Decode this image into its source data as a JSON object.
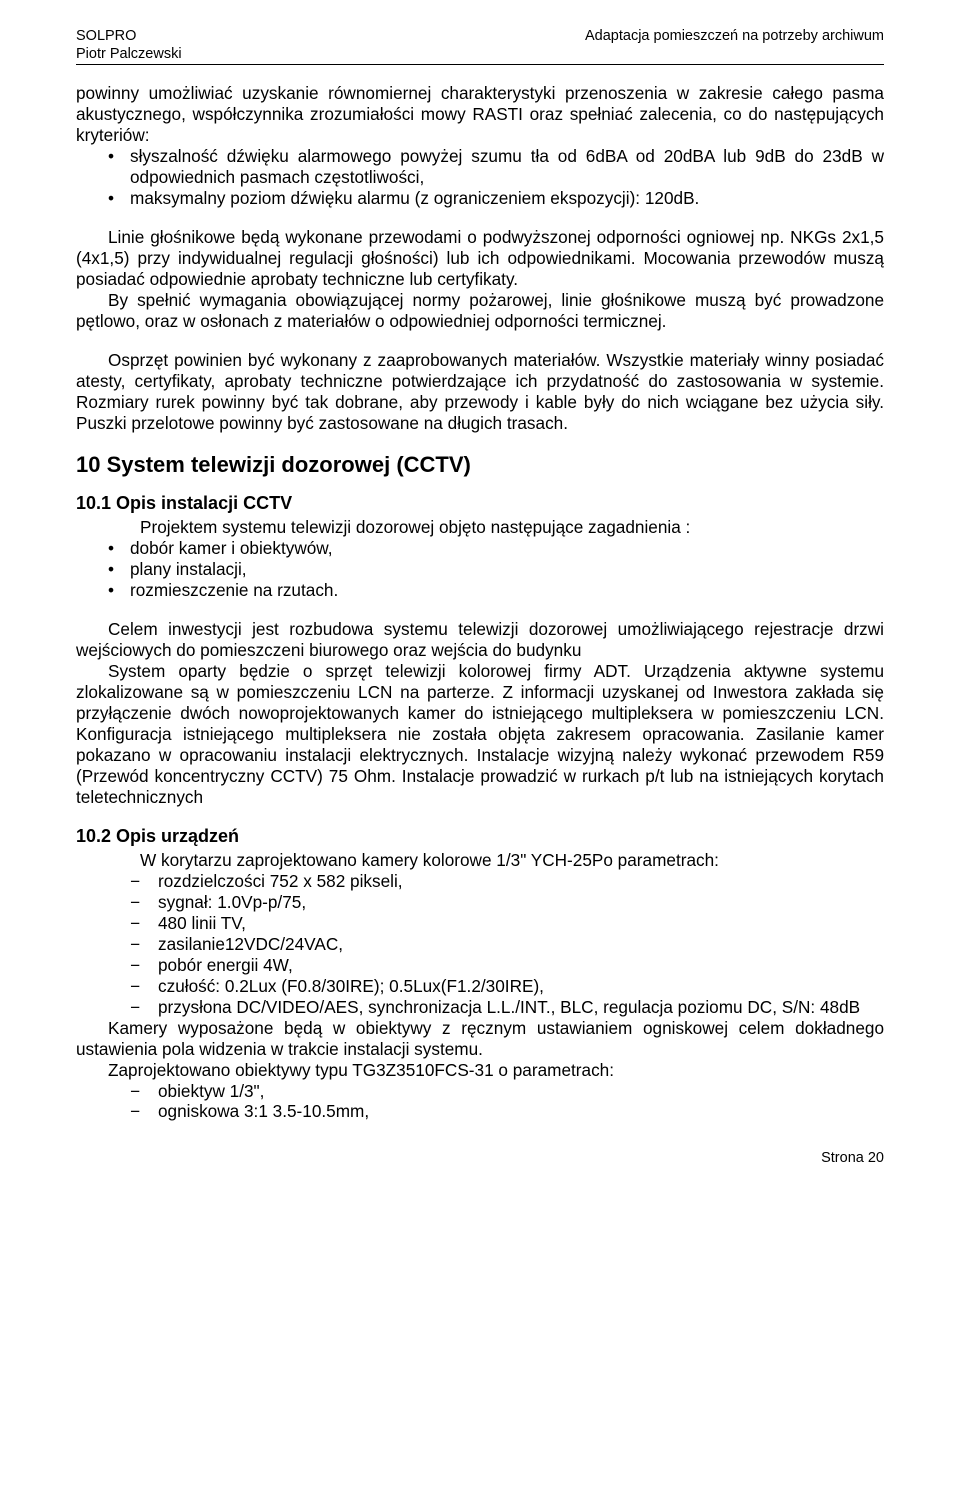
{
  "header": {
    "left_line1": "SOLPRO",
    "left_line2": "Piotr Palczewski",
    "right": "Adaptacja pomieszczeń na potrzeby archiwum"
  },
  "p1": "powinny umożliwiać uzyskanie równomiernej charakterystyki przenoszenia w zakresie całego pasma akustycznego, współczynnika zrozumiałości mowy RASTI oraz spełniać zalecenia, co do następujących kryteriów:",
  "bullets1": [
    "słyszalność dźwięku alarmowego powyżej szumu tła od 6dBA od 20dBA lub 9dB do 23dB w odpowiednich pasmach częstotliwości,",
    "maksymalny poziom dźwięku alarmu (z ograniczeniem ekspozycji): 120dB."
  ],
  "p2": "Linie głośnikowe będą wykonane przewodami o podwyższonej odporności ogniowej np. NKGs 2x1,5 (4x1,5) przy indywidualnej regulacji głośności) lub ich odpowiednikami. Mocowania przewodów muszą posiadać odpowiednie aprobaty techniczne lub certyfikaty.",
  "p3": "By spełnić wymagania obowiązującej normy pożarowej, linie głośnikowe muszą być prowadzone pętlowo, oraz w osłonach z materiałów o odpowiedniej odporności termicznej.",
  "p4": "Osprzęt powinien być wykonany z  zaaprobowanych materiałów. Wszystkie materiały winny posiadać atesty, certyfikaty, aprobaty techniczne potwierdzające ich przydatność do zastosowania w systemie. Rozmiary rurek powinny być tak dobrane, aby przewody i kable były do nich wciągane bez użycia siły. Puszki przelotowe powinny być zastosowane na długich trasach.",
  "h10": "10  System telewizji dozorowej (CCTV)",
  "h10_1": "10.1  Opis instalacji CCTV",
  "p5": "Projektem systemu telewizji dozorowej objęto następujące zagadnienia :",
  "bullets2": [
    "dobór kamer i obiektywów,",
    "plany instalacji,",
    "rozmieszczenie na rzutach."
  ],
  "p6": "Celem inwestycji jest rozbudowa systemu telewizji dozorowej umożliwiającego rejestracje drzwi wejściowych do pomieszczeni biurowego oraz wejścia do budynku",
  "p7": "System oparty będzie o sprzęt telewizji kolorowej firmy ADT. Urządzenia aktywne systemu zlokalizowane są w pomieszczeniu LCN na parterze. Z informacji uzyskanej od Inwestora zakłada się przyłączenie dwóch nowoprojektowanych kamer do istniejącego multipleksera w pomieszczeniu LCN. Konfiguracja istniejącego multipleksera nie została objęta zakresem opracowania. Zasilanie kamer pokazano w opracowaniu instalacji elektrycznych. Instalacje wizyjną należy wykonać przewodem R59 (Przewód koncentryczny CCTV) 75 Ohm. Instalacje prowadzić w rurkach p/t lub na istniejących korytach teletechnicznych",
  "h10_2": "10.2  Opis urządzeń",
  "p8": "W korytarzu zaprojektowano kamery kolorowe 1/3\" YCH-25Po parametrach:",
  "dashes1": [
    "rozdzielczości 752 x 582 pikseli,",
    "sygnał: 1.0Vp-p/75,",
    "480 linii TV,",
    "zasilanie12VDC/24VAC,",
    "pobór energii 4W,",
    "czułość: 0.2Lux (F0.8/30IRE); 0.5Lux(F1.2/30IRE),",
    "przysłona DC/VIDEO/AES, synchronizacja L.L./INT., BLC, regulacja poziomu DC, S/N: 48dB"
  ],
  "p9": "Kamery wyposażone będą w obiektywy z ręcznym ustawianiem ogniskowej celem dokładnego ustawienia pola widzenia w trakcie instalacji systemu.",
  "p10": "Zaprojektowano obiektywy typu TG3Z3510FCS-31 o parametrach:",
  "dashes2": [
    "obiektyw 1/3\",",
    "ogniskowa 3:1 3.5-10.5mm,"
  ],
  "footer": "Strona 20",
  "colors": {
    "text": "#000000",
    "background": "#ffffff",
    "rule": "#000000"
  }
}
